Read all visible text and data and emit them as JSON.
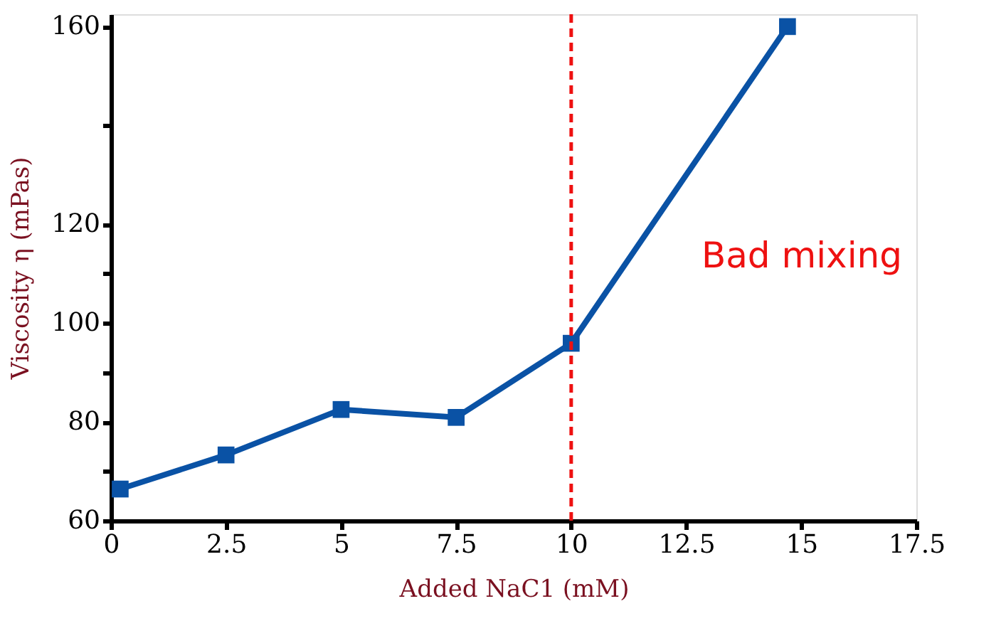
{
  "chart_data": {
    "type": "line",
    "xlabel": "Added NaC1 (mM)",
    "ylabel": "Viscosity η (mPas)",
    "x": [
      0.2,
      2.5,
      5,
      7.5,
      10,
      14.7
    ],
    "series": [
      {
        "color": "#0a52a5",
        "values": [
          66.4,
          73.3,
          82.5,
          80.9,
          95.9,
          160
        ]
      }
    ],
    "xlim": [
      0,
      17.5
    ],
    "xticks": [
      0,
      2.5,
      5,
      7.5,
      10,
      12.5,
      15,
      17.5
    ],
    "ylim": [
      60,
      162.5
    ],
    "yticks": [
      60,
      {
        "value": 70,
        "label": null
      },
      80,
      {
        "value": 90,
        "label": null
      },
      100,
      {
        "value": 110,
        "label": null
      },
      120,
      {
        "value": 140,
        "label": null
      },
      160
    ],
    "ref_lines": [
      {
        "axis": "x",
        "value": 10,
        "color": "#ee1111",
        "line_style": "dashed"
      }
    ],
    "annotations": [
      "Bad mixing"
    ],
    "grid": false,
    "marker": "square",
    "line_style": "solid"
  }
}
